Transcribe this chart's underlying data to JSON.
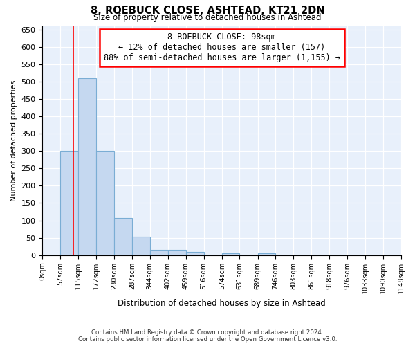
{
  "title1": "8, ROEBUCK CLOSE, ASHTEAD, KT21 2DN",
  "title2": "Size of property relative to detached houses in Ashtead",
  "xlabel": "Distribution of detached houses by size in Ashtead",
  "ylabel": "Number of detached properties",
  "footer1": "Contains HM Land Registry data © Crown copyright and database right 2024.",
  "footer2": "Contains public sector information licensed under the Open Government Licence v3.0.",
  "bin_labels": [
    "0sqm",
    "57sqm",
    "115sqm",
    "172sqm",
    "230sqm",
    "287sqm",
    "344sqm",
    "402sqm",
    "459sqm",
    "516sqm",
    "574sqm",
    "631sqm",
    "689sqm",
    "746sqm",
    "803sqm",
    "861sqm",
    "918sqm",
    "976sqm",
    "1033sqm",
    "1090sqm",
    "1148sqm"
  ],
  "bar_values": [
    0,
    300,
    510,
    300,
    107,
    53,
    15,
    15,
    10,
    0,
    5,
    0,
    5,
    0,
    0,
    0,
    0,
    0,
    0,
    0
  ],
  "bar_color": "#c5d8f0",
  "bar_edge_color": "#7aadd4",
  "property_line_x": 98,
  "property_line_label": "8 ROEBUCK CLOSE: 98sqm",
  "annotation_line1": "← 12% of detached houses are smaller (157)",
  "annotation_line2": "88% of semi-detached houses are larger (1,155) →",
  "ylim": [
    0,
    660
  ],
  "yticks": [
    0,
    50,
    100,
    150,
    200,
    250,
    300,
    350,
    400,
    450,
    500,
    550,
    600,
    650
  ],
  "background_color": "#e8f0fb",
  "grid_color": "#ffffff",
  "fig_background": "#ffffff"
}
